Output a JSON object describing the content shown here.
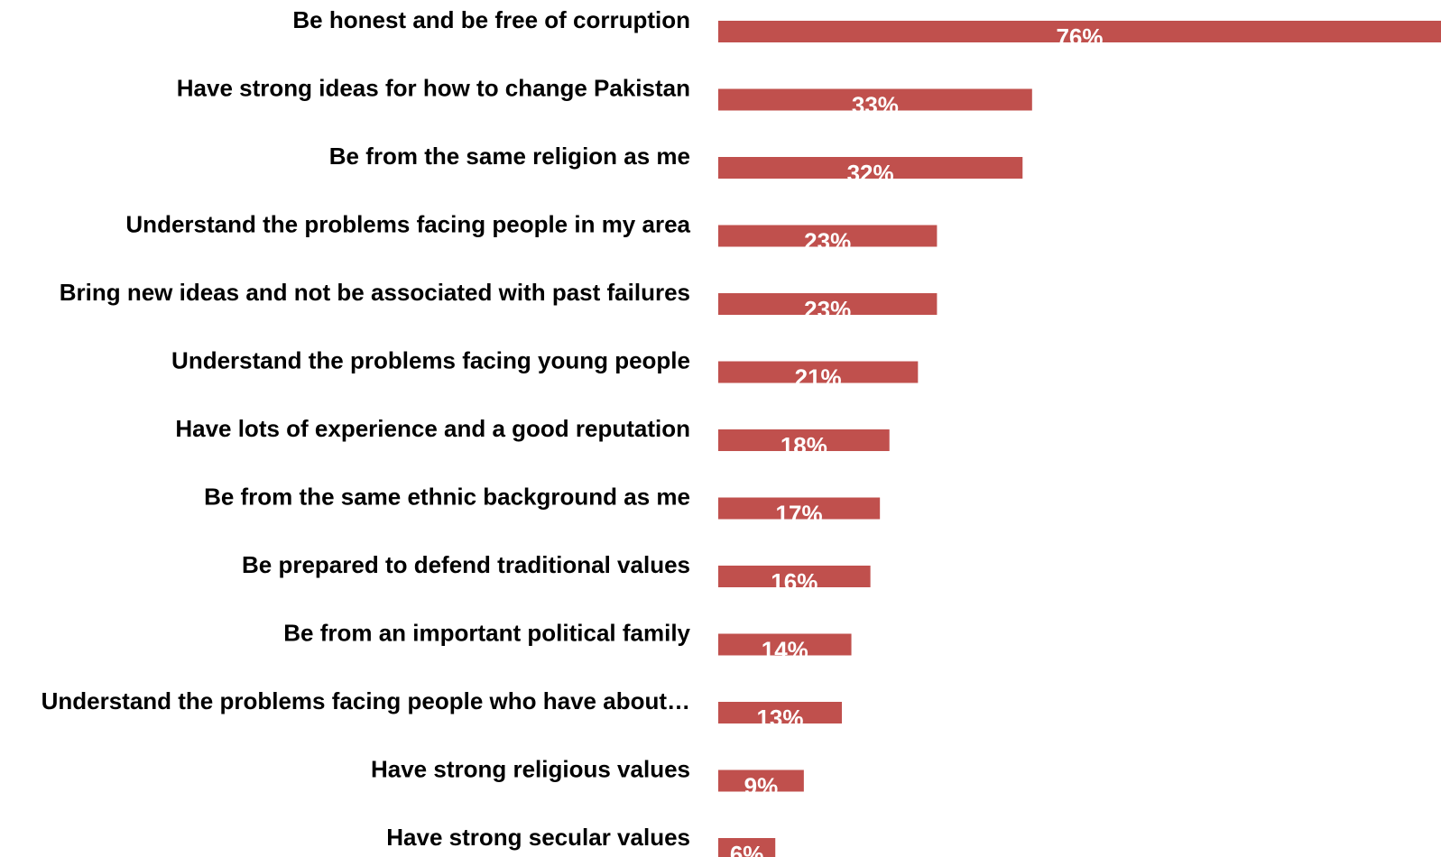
{
  "chart_data": {
    "type": "bar",
    "orientation": "horizontal",
    "categories": [
      "Be honest and be free of corruption",
      "Have strong ideas for how to change Pakistan",
      "Be from the same religion as me",
      "Understand the problems facing people in my area",
      "Bring new ideas and not be associated with past failures",
      "Understand the problems facing young people",
      "Have lots of experience and a good reputation",
      "Be from the same ethnic background as me",
      "Be prepared to defend traditional values",
      "Be from an important political family",
      "Understand the problems facing people who have about…",
      "Have strong religious values",
      "Have strong secular values"
    ],
    "values": [
      76,
      33,
      32,
      23,
      23,
      21,
      18,
      17,
      16,
      14,
      13,
      9,
      6
    ],
    "value_labels": [
      "76%",
      "33%",
      "32%",
      "23%",
      "23%",
      "21%",
      "18%",
      "17%",
      "16%",
      "14%",
      "13%",
      "9%",
      "6%"
    ],
    "title": "",
    "xlabel": "",
    "ylabel": "",
    "xlim": [
      0,
      76
    ],
    "grid": false,
    "legend": "none",
    "colors": {
      "bar": "#c0504d",
      "category_text": "#000000",
      "value_text": "#ffffff"
    }
  }
}
